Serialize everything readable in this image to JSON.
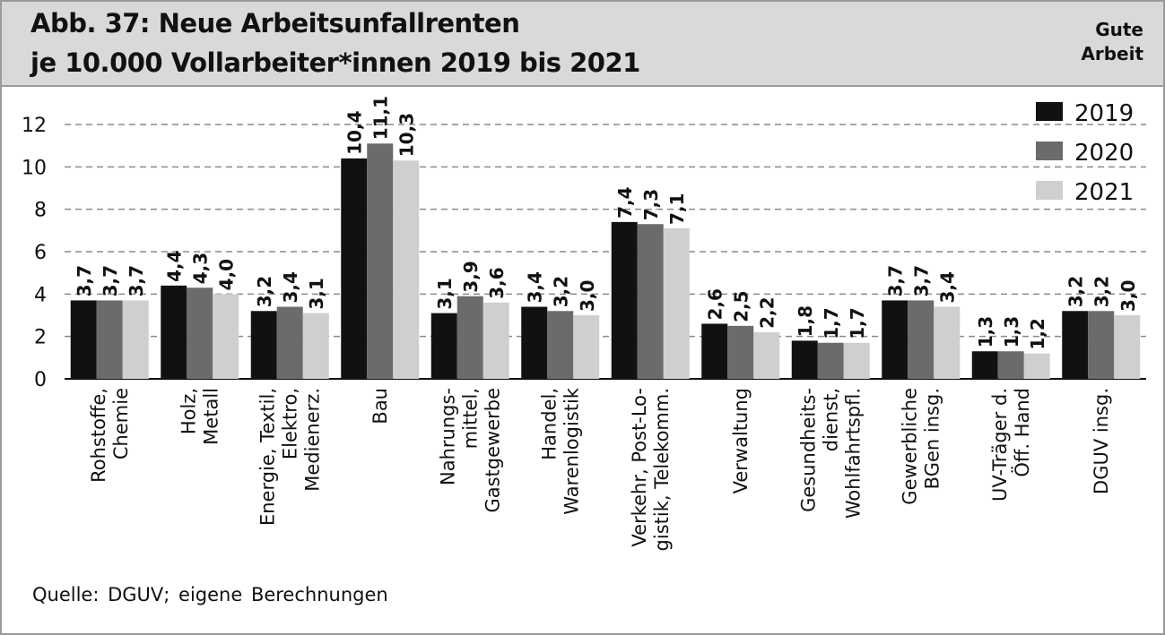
{
  "header": {
    "title_line1": "Abb. 37: Neue Arbeitsunfallrenten",
    "title_line2": "je 10.000 Vollarbeiter*innen 2019 bis 2021",
    "brand_line1": "Gute",
    "brand_line2": "Arbeit"
  },
  "footer": {
    "source": "Quelle: DGUV;  eigene  Berechnungen"
  },
  "chart_data": {
    "type": "bar",
    "title": "Abb. 37: Neue Arbeitsunfallrenten je 10.000 Vollarbeiter*innen 2019 bis 2021",
    "xlabel": "",
    "ylabel": "",
    "ylim": [
      0,
      12
    ],
    "yticks": [
      "0",
      "2",
      "4",
      "6",
      "8",
      "10",
      "12"
    ],
    "grid": true,
    "legend_position": "top-right",
    "categories": [
      [
        "Rohstoffe,",
        "Chemie"
      ],
      [
        "Holz,",
        "Metall"
      ],
      [
        "Energie, Textil,",
        "Elektro,",
        "Medienerz."
      ],
      [
        "Bau"
      ],
      [
        "Nahrungs-",
        "mittel,",
        "Gastgewerbe"
      ],
      [
        "Handel,",
        "Warenlogistik"
      ],
      [
        "Verkehr, Post-Lo-",
        "gistik, Telekomm."
      ],
      [
        "Verwaltung"
      ],
      [
        "Gesundheits-",
        "dienst,",
        "Wohlfahrtspfl."
      ],
      [
        "Gewerbliche",
        "BGen insg."
      ],
      [
        "UV-Träger d.",
        "Öff. Hand"
      ],
      [
        "DGUV insg."
      ]
    ],
    "series": [
      {
        "name": "2019",
        "color": "#111111",
        "values": [
          3.7,
          4.4,
          3.2,
          10.4,
          3.1,
          3.4,
          7.4,
          2.6,
          1.8,
          3.7,
          1.3,
          3.2
        ],
        "labels": [
          "3,7",
          "4,4",
          "3,2",
          "10,4",
          "3,1",
          "3,4",
          "7,4",
          "2,6",
          "1,8",
          "3,7",
          "1,3",
          "3,2"
        ]
      },
      {
        "name": "2020",
        "color": "#6b6b6b",
        "values": [
          3.7,
          4.3,
          3.4,
          11.1,
          3.9,
          3.2,
          7.3,
          2.5,
          1.7,
          3.7,
          1.3,
          3.2
        ],
        "labels": [
          "3,7",
          "4,3",
          "3,4",
          "11,1",
          "3,9",
          "3,2",
          "7,3",
          "2,5",
          "1,7",
          "3,7",
          "1,3",
          "3,2"
        ]
      },
      {
        "name": "2021",
        "color": "#cfcfcf",
        "values": [
          3.7,
          4.0,
          3.1,
          10.3,
          3.6,
          3.0,
          7.1,
          2.2,
          1.7,
          3.4,
          1.2,
          3.0
        ],
        "labels": [
          "3,7",
          "4,0",
          "3,1",
          "10,3",
          "3,6",
          "3,0",
          "7,1",
          "2,2",
          "1,7",
          "3,4",
          "1,2",
          "3,0"
        ]
      }
    ]
  }
}
